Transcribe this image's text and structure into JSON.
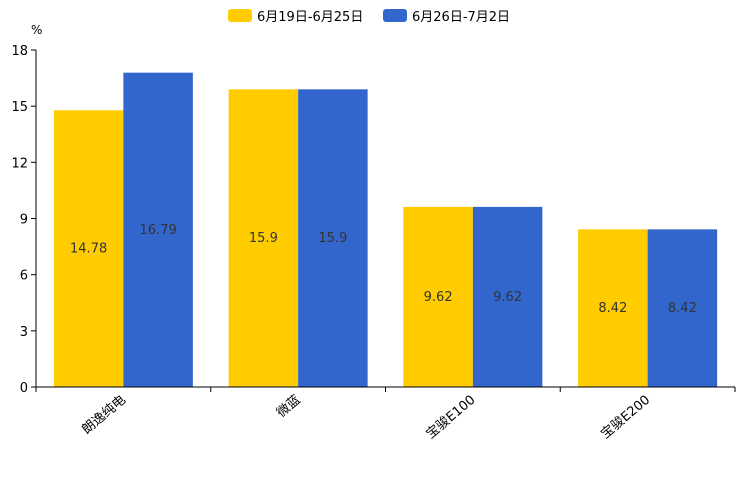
{
  "chart_data": {
    "type": "bar",
    "unit": "%",
    "categories": [
      "朗逸纯电",
      "微蓝",
      "宝骏E100",
      "宝骏E200"
    ],
    "series": [
      {
        "name": "6月19日-6月25日",
        "color": "#ffcc00",
        "values": [
          14.78,
          15.9,
          9.62,
          8.42
        ],
        "labels": [
          "14.78",
          "15.9",
          "9.62",
          "8.42"
        ]
      },
      {
        "name": "6月26日-7月2日",
        "color": "#3366cc",
        "values": [
          16.79,
          15.9,
          9.62,
          8.42
        ],
        "labels": [
          "16.79",
          "15.9",
          "9.62",
          "8.42"
        ]
      }
    ],
    "yticks": [
      0,
      3,
      6,
      9,
      12,
      15,
      18
    ],
    "ylim": [
      0,
      18
    ],
    "legend_position": "top-center",
    "grid": false
  }
}
